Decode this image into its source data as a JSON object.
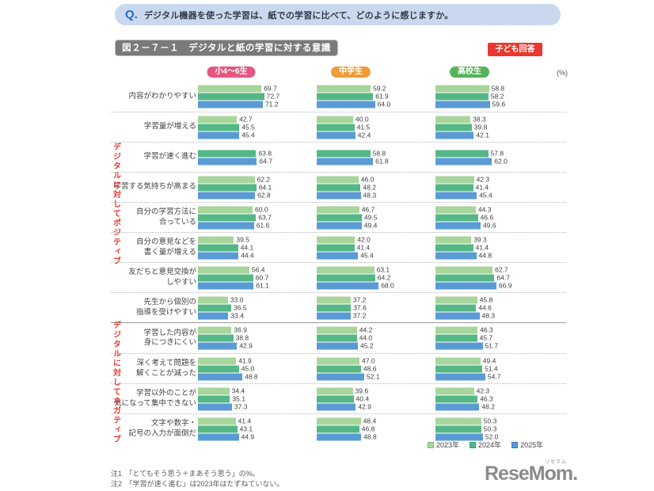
{
  "question": {
    "q_label": "Q.",
    "text": "デジタル機器を使った学習は、紙での学習に比べて、どのように感じますか。"
  },
  "figure": {
    "title": "図２－７－１　デジタルと紙の学習に対する意識",
    "respondent_badge": "子ども回答",
    "unit_label": "(%)"
  },
  "chart_data": {
    "type": "bar",
    "orientation": "horizontal",
    "value_unit": "%",
    "xlim": [
      0,
      100
    ],
    "grid": false,
    "legend_position": "bottom-right",
    "groups": [
      {
        "label": "小4～6生",
        "badge_color": "#e8567f"
      },
      {
        "label": "中学生",
        "badge_color": "#f09c3a"
      },
      {
        "label": "高校生",
        "badge_color": "#55b35a"
      }
    ],
    "series": [
      {
        "name": "2023年",
        "color": "#a8d59c",
        "border": "#84b87e"
      },
      {
        "name": "2024年",
        "color": "#55b786",
        "border": "#3d9a6d"
      },
      {
        "name": "2025年",
        "color": "#5b9bd5",
        "border": "#4179b1"
      }
    ],
    "sections": [
      {
        "label": "デジタルに対してポジティブ",
        "rows": [
          {
            "label_lines": [
              "内容がわかりやすい"
            ],
            "values": [
              [
                69.7,
                72.7,
                71.2
              ],
              [
                59.2,
                61.9,
                64.0
              ],
              [
                58.8,
                58.2,
                59.6
              ]
            ]
          },
          {
            "label_lines": [
              "学習量が増える"
            ],
            "values": [
              [
                42.7,
                45.5,
                45.4
              ],
              [
                40.0,
                41.5,
                42.4
              ],
              [
                38.3,
                39.8,
                42.1
              ]
            ]
          },
          {
            "label_lines": [
              "学習が速く進む"
            ],
            "values": [
              [
                null,
                63.8,
                64.7
              ],
              [
                null,
                58.8,
                61.8
              ],
              [
                null,
                57.8,
                62.0
              ]
            ]
          },
          {
            "label_lines": [
              "学習する気持ちが高まる"
            ],
            "values": [
              [
                62.2,
                64.1,
                62.8
              ],
              [
                46.0,
                48.2,
                48.3
              ],
              [
                42.3,
                41.4,
                45.4
              ]
            ]
          },
          {
            "label_lines": [
              "自分の学習方法に",
              "合っている"
            ],
            "values": [
              [
                60.0,
                63.7,
                61.6
              ],
              [
                46.7,
                49.5,
                49.4
              ],
              [
                44.3,
                46.6,
                49.6
              ]
            ]
          },
          {
            "label_lines": [
              "自分の意見などを",
              "書く量が増える"
            ],
            "values": [
              [
                39.5,
                44.1,
                44.4
              ],
              [
                42.0,
                41.4,
                45.4
              ],
              [
                39.3,
                41.4,
                44.8
              ]
            ]
          },
          {
            "label_lines": [
              "友だちと意見交換が",
              "しやすい"
            ],
            "values": [
              [
                56.4,
                60.7,
                61.1
              ],
              [
                63.1,
                64.2,
                68.0
              ],
              [
                62.7,
                64.7,
                66.9
              ]
            ]
          },
          {
            "label_lines": [
              "先生から個別の",
              "指導を受けやすい"
            ],
            "values": [
              [
                33.0,
                36.5,
                33.4
              ],
              [
                37.2,
                37.6,
                37.2
              ],
              [
                45.8,
                44.6,
                48.3
              ]
            ]
          }
        ]
      },
      {
        "label": "デジタルに対してネガティブ",
        "rows": [
          {
            "label_lines": [
              "学習した内容が",
              "身につきにくい"
            ],
            "values": [
              [
                36.9,
                38.8,
                42.9
              ],
              [
                44.2,
                44.0,
                45.2
              ],
              [
                46.3,
                45.7,
                51.7
              ]
            ]
          },
          {
            "label_lines": [
              "深く考えて問題を",
              "解くことが減った"
            ],
            "values": [
              [
                41.9,
                45.0,
                48.8
              ],
              [
                47.0,
                48.6,
                52.1
              ],
              [
                49.4,
                51.4,
                54.7
              ]
            ]
          },
          {
            "label_lines": [
              "学習以外のことが",
              "気になって集中できない"
            ],
            "values": [
              [
                34.4,
                35.1,
                37.3
              ],
              [
                39.6,
                40.4,
                42.9
              ],
              [
                42.3,
                46.3,
                48.2
              ]
            ]
          },
          {
            "label_lines": [
              "文字や数字・",
              "記号の入力が面倒だ"
            ],
            "values": [
              [
                41.4,
                43.1,
                44.9
              ],
              [
                48.4,
                46.8,
                48.8
              ],
              [
                50.3,
                50.3,
                52.0
              ]
            ]
          }
        ]
      }
    ]
  },
  "notes": [
    "注1　「とてもそう思う＋まあそう思う」の%。",
    "注2　「学習が速く進む」は2023年はたずねていない。"
  ],
  "logo": {
    "text": "ReseMom.",
    "ruby": "リセマム"
  }
}
